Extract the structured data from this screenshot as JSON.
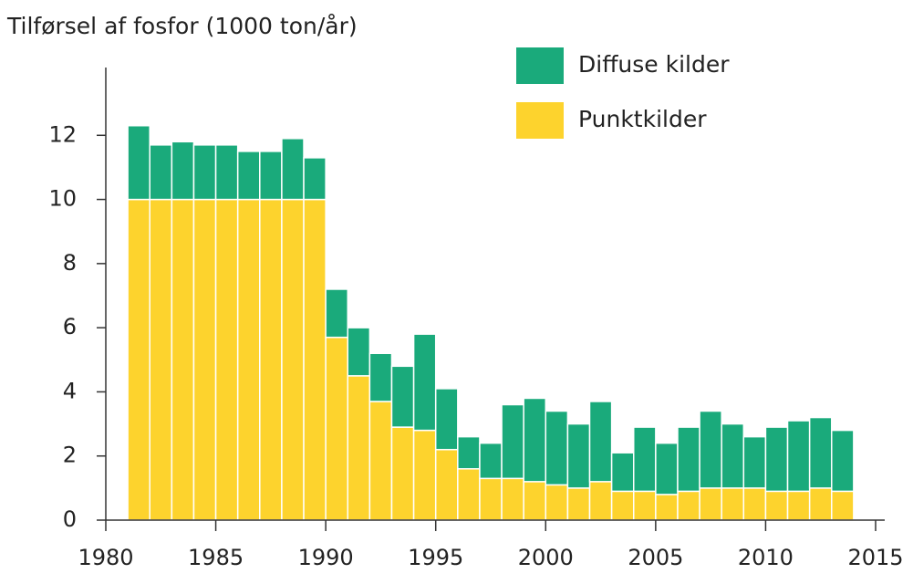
{
  "chart_data": {
    "type": "bar",
    "stacked": true,
    "title": "Tilførsel af fosfor (1000 ton/år)",
    "x": [
      1981,
      1982,
      1983,
      1984,
      1985,
      1986,
      1987,
      1988,
      1989,
      1990,
      1991,
      1992,
      1993,
      1994,
      1995,
      1996,
      1997,
      1998,
      1999,
      2000,
      2001,
      2002,
      2003,
      2004,
      2005,
      2006,
      2007,
      2008,
      2009,
      2010,
      2011,
      2012,
      2013
    ],
    "series": [
      {
        "name": "Punktkilder",
        "color": "#fdd32d",
        "values": [
          10,
          10,
          10,
          10,
          10,
          10,
          10,
          10,
          10,
          5.7,
          4.5,
          3.7,
          2.9,
          2.8,
          2.2,
          1.6,
          1.3,
          1.3,
          1.2,
          1.1,
          1.0,
          1.2,
          0.9,
          0.9,
          0.8,
          0.9,
          1.0,
          1.0,
          1.0,
          0.9,
          0.9,
          1.0,
          0.9
        ]
      },
      {
        "name": "Diffuse kilder",
        "color": "#1aaa7b",
        "values": [
          2.3,
          1.7,
          1.8,
          1.7,
          1.7,
          1.5,
          1.5,
          1.9,
          1.3,
          1.5,
          1.5,
          1.5,
          1.9,
          3.0,
          1.9,
          1.0,
          1.1,
          2.3,
          2.6,
          2.3,
          2.0,
          2.5,
          1.2,
          2.0,
          1.6,
          2.0,
          2.4,
          2.0,
          1.6,
          2.0,
          2.2,
          2.2,
          1.9
        ]
      }
    ],
    "xlim": [
      1980,
      2015
    ],
    "xticks": [
      1980,
      1985,
      1990,
      1995,
      2000,
      2005,
      2010,
      2015
    ],
    "ylim": [
      0,
      14
    ],
    "yticks": [
      0,
      2,
      4,
      6,
      8,
      10,
      12
    ],
    "legend": "top-right"
  }
}
